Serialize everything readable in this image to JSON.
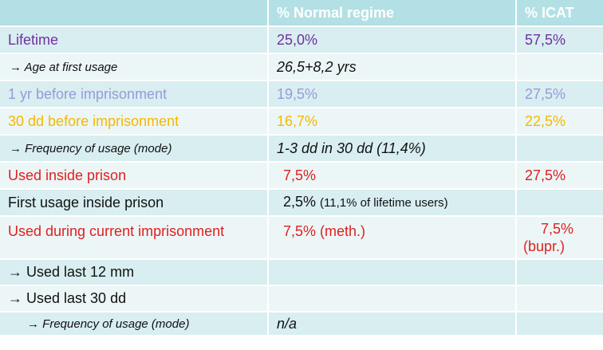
{
  "table": {
    "headers": [
      "",
      "% Normal regime",
      "% ICAT"
    ],
    "rows": [
      {
        "label": "Lifetime",
        "normal": "25,0%",
        "icat": "57,5%"
      },
      {
        "label": "Age at first usage",
        "normal": "26,5+8,2 yrs",
        "icat": ""
      },
      {
        "label": "1 yr before imprisonment",
        "normal": "19,5%",
        "icat": "27,5%"
      },
      {
        "label": "30 dd before imprisonment",
        "normal": "16,7%",
        "icat": "22,5%"
      },
      {
        "label": "Frequency of usage (mode)",
        "normal": "1-3 dd in 30 dd (11,4%)",
        "icat": ""
      },
      {
        "label": "Used inside prison",
        "normal": "7,5%",
        "icat": "27,5%"
      },
      {
        "label": "First usage inside prison",
        "normal": "2,5%",
        "normal_note": "(11,1% of lifetime users)",
        "icat": ""
      },
      {
        "label": "Used during current imprisonment",
        "normal": "7,5% (meth.)",
        "icat": "7,5%",
        "icat_note": "(bupr.)"
      },
      {
        "label": "Used last 12 mm",
        "normal": "",
        "icat": ""
      },
      {
        "label": "Used last 30 dd",
        "normal": "",
        "icat": ""
      },
      {
        "label": "Frequency of usage (mode)",
        "normal": "n/a",
        "icat": ""
      }
    ],
    "arrow_glyph": "→",
    "colors": {
      "header_bg": "#b2e0e5",
      "row_dark": "#d8eef0",
      "row_light": "#ecf6f7",
      "purple": "#7030a0",
      "lavender": "#9999dd",
      "orange": "#f5b800",
      "red": "#e01f1f"
    }
  }
}
